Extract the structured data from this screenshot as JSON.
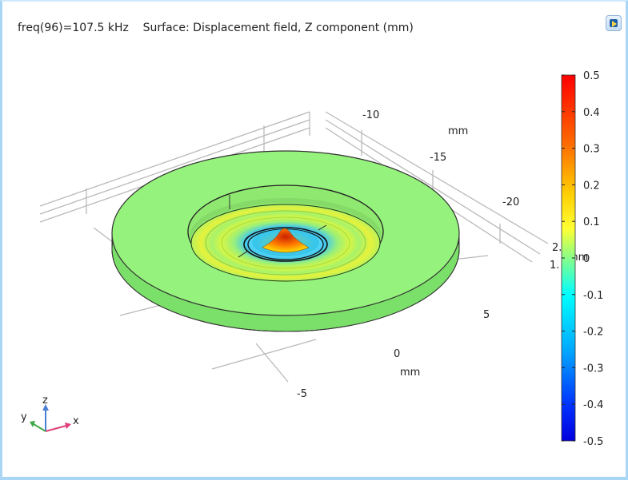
{
  "plot": {
    "title": "freq(96)=107.5 kHz    Surface: Displacement field, Z component (mm)"
  },
  "axes": {
    "y_ticks": [
      "-10",
      "-15",
      "-20"
    ],
    "y_unit": "mm",
    "x_ticks": [
      "5",
      "0",
      "-5"
    ],
    "x_unit": "mm",
    "z_ticks_partial": [
      "2.",
      "1."
    ],
    "z_unit_partial": "mm"
  },
  "triad": {
    "x": "x",
    "y": "y",
    "z": "z"
  },
  "colorbar": {
    "ticks": [
      "0.5",
      "0.4",
      "0.3",
      "0.2",
      "0.1",
      "0",
      "-0.1",
      "-0.2",
      "-0.3",
      "-0.4",
      "-0.5"
    ],
    "colors": [
      "#ff0000",
      "#ff8800",
      "#ffee00",
      "#88ff66",
      "#00ffff",
      "#0044ff",
      "#0000cc"
    ]
  },
  "icons": {
    "corner": "window-toggle-icon"
  }
}
